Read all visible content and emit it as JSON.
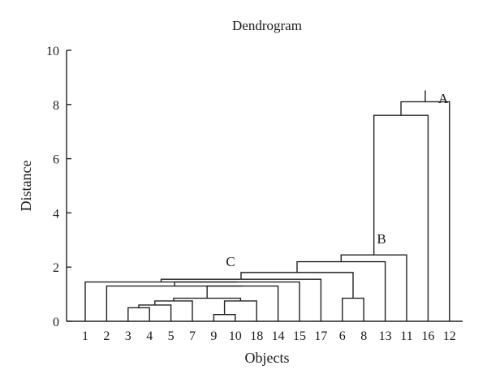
{
  "chart_data": {
    "type": "dendrogram",
    "title": "Dendrogram",
    "xlabel": "Objects",
    "ylabel": "Distance",
    "ylim": [
      0,
      10
    ],
    "yticks": [
      0,
      2,
      4,
      6,
      8,
      10
    ],
    "leaves": [
      "1",
      "2",
      "3",
      "4",
      "5",
      "7",
      "9",
      "10",
      "18",
      "14",
      "15",
      "17",
      "6",
      "8",
      "13",
      "11",
      "16",
      "12"
    ],
    "merges": [
      {
        "left": "9",
        "right": "10",
        "height": 0.25
      },
      {
        "left": "3",
        "right": "4",
        "height": 0.5
      },
      {
        "left": "m1",
        "right": "5",
        "height": 0.6
      },
      {
        "left": "m0",
        "right": "18",
        "height": 0.75
      },
      {
        "left": "m2",
        "right": "7",
        "height": 0.75
      },
      {
        "left": "6",
        "right": "8",
        "height": 0.85
      },
      {
        "left": "m4",
        "right": "m3",
        "height": 0.85
      },
      {
        "left": "m6",
        "right": "14",
        "height": 1.3
      },
      {
        "left": "2",
        "right": "m7",
        "height": 1.3
      },
      {
        "left": "m8",
        "right": "15",
        "height": 1.45
      },
      {
        "left": "1",
        "right": "m9",
        "height": 1.45
      },
      {
        "left": "m10",
        "right": "17",
        "height": 1.55
      },
      {
        "left": "m11",
        "right": "m5",
        "height": 1.8
      },
      {
        "left": "m12",
        "right": "13",
        "height": 2.2
      },
      {
        "left": "m13",
        "right": "11",
        "height": 2.45
      },
      {
        "left": "m14",
        "right": "16",
        "height": 7.6
      },
      {
        "left": "m15",
        "right": "12",
        "height": 8.1
      }
    ],
    "annotations": [
      {
        "text": "A",
        "near": "11-16-12 merge"
      },
      {
        "text": "B",
        "near": "13-11 merge"
      },
      {
        "text": "C",
        "near": "objects 1-17 cluster"
      }
    ]
  }
}
